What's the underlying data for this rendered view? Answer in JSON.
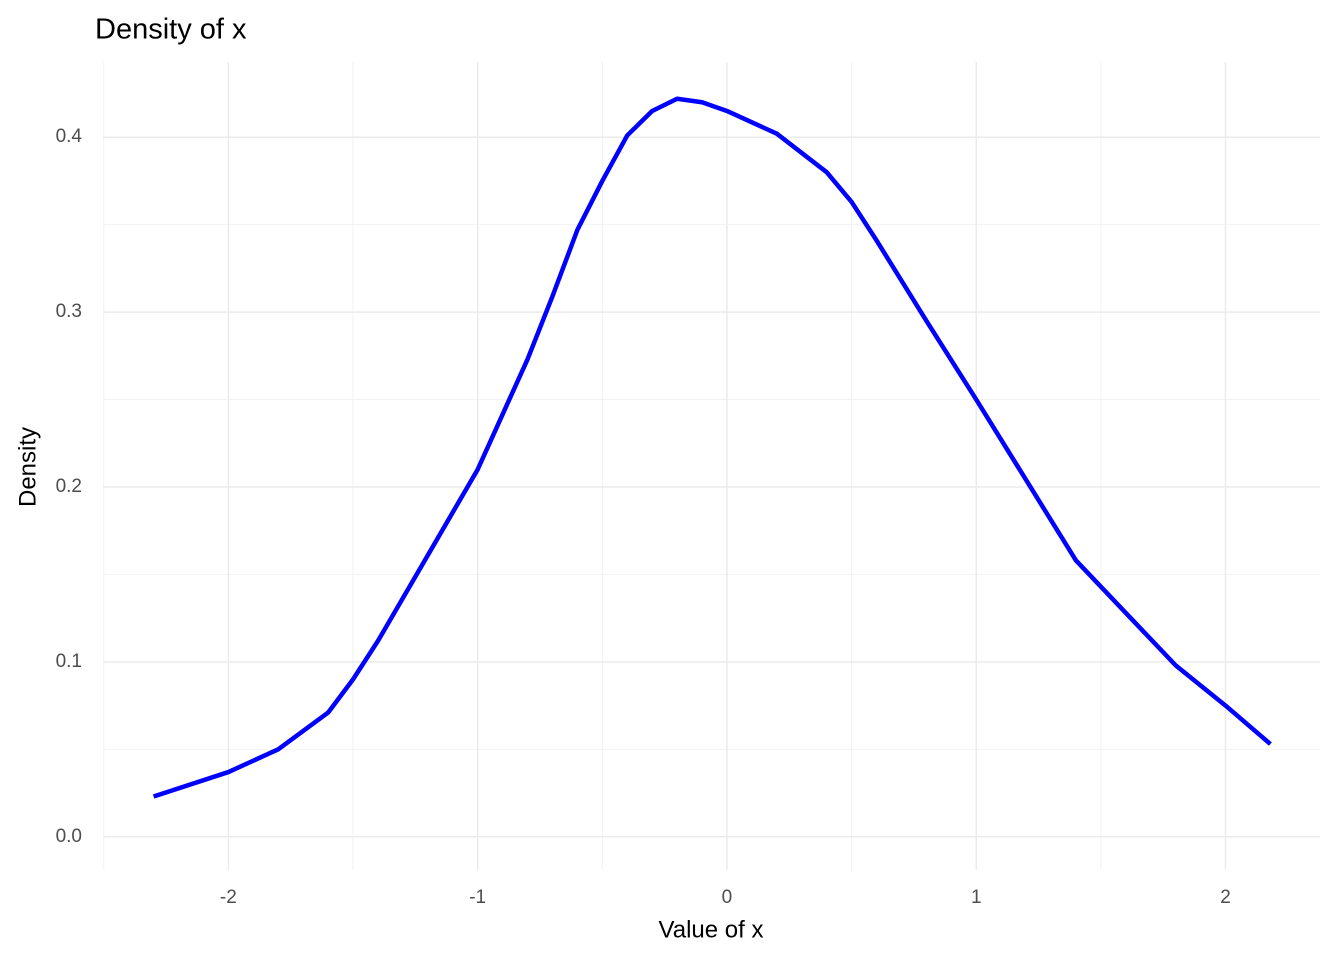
{
  "chart_data": {
    "type": "line",
    "title": "Density of x",
    "xlabel": "Value of x",
    "ylabel": "Density",
    "series": [
      {
        "name": "density",
        "color": "#0000ff",
        "x": [
          -2.3,
          -2.0,
          -1.8,
          -1.6,
          -1.5,
          -1.4,
          -1.2,
          -1.0,
          -0.8,
          -0.7,
          -0.6,
          -0.5,
          -0.4,
          -0.3,
          -0.2,
          -0.1,
          0,
          0.2,
          0.4,
          0.5,
          0.6,
          0.8,
          1.0,
          1.2,
          1.4,
          1.6,
          1.8,
          2.0,
          2.18
        ],
        "values": [
          0.023,
          0.037,
          0.05,
          0.071,
          0.09,
          0.112,
          0.161,
          0.21,
          0.273,
          0.309,
          0.347,
          0.375,
          0.401,
          0.415,
          0.422,
          0.42,
          0.415,
          0.402,
          0.38,
          0.363,
          0.341,
          0.295,
          0.25,
          0.204,
          0.158,
          0.128,
          0.098,
          0.075,
          0.053
        ]
      }
    ],
    "xlim": [
      -2.503,
      2.379
    ],
    "ylim": [
      -0.019,
      0.443
    ],
    "xticks": [
      -2,
      -1,
      0,
      1,
      2
    ],
    "yticks": [
      {
        "value": 0,
        "label": "0.0"
      },
      0.1,
      0.2,
      0.3,
      0.4
    ],
    "x_minor_grid": [
      -2.5,
      -1.5,
      -0.5,
      0.5,
      1.5
    ],
    "y_minor_grid": [
      0.05,
      0.15,
      0.25,
      0.35
    ],
    "grid": true
  }
}
